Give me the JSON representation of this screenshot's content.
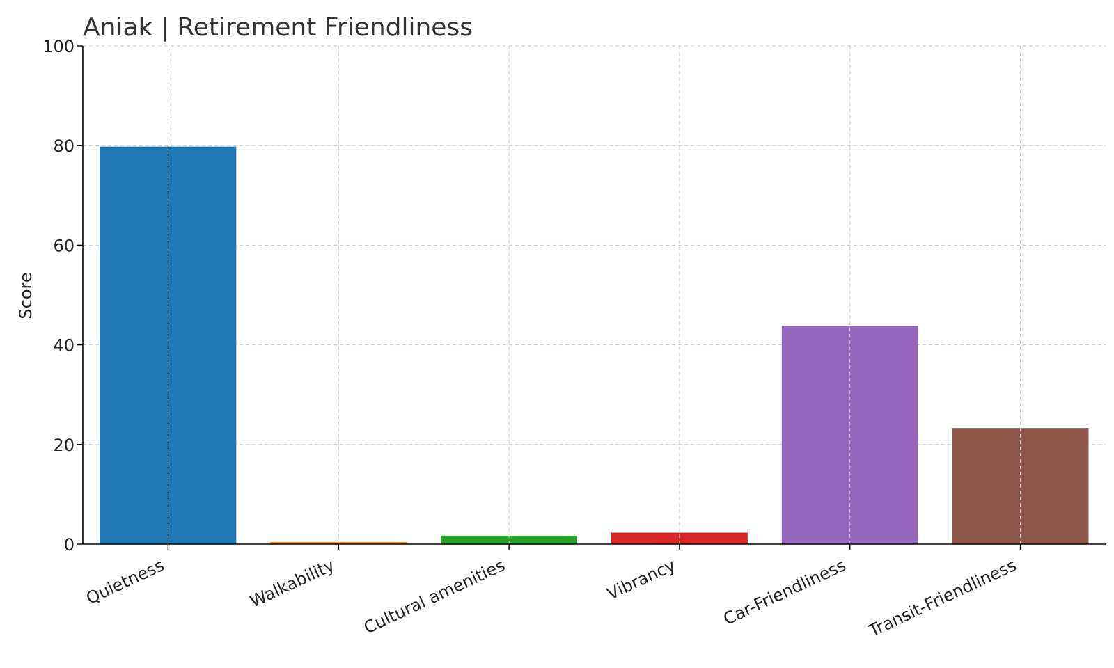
{
  "chart_data": {
    "type": "bar",
    "title": "Aniak | Retirement Friendliness",
    "xlabel": "",
    "ylabel": "Score",
    "ylim": [
      0,
      100
    ],
    "yticks": [
      0,
      20,
      40,
      60,
      80,
      100
    ],
    "grid": true,
    "categories": [
      "Quietness",
      "Walkability",
      "Cultural amenities",
      "Vibrancy",
      "Car-Friendliness",
      "Transit-Friendliness"
    ],
    "values": [
      79.8,
      0.4,
      1.7,
      2.3,
      43.8,
      23.3
    ],
    "colors": [
      "#1f77b4",
      "#ff7f0e",
      "#2ca02c",
      "#d62728",
      "#9467bd",
      "#8c564b"
    ]
  }
}
